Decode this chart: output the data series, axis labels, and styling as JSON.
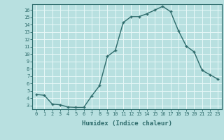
{
  "x": [
    0,
    1,
    2,
    3,
    4,
    5,
    6,
    7,
    8,
    9,
    10,
    11,
    12,
    13,
    14,
    15,
    16,
    17,
    18,
    19,
    20,
    21,
    22,
    23
  ],
  "y": [
    4.5,
    4.4,
    3.2,
    3.1,
    2.8,
    2.75,
    2.75,
    4.3,
    5.7,
    9.7,
    10.5,
    14.3,
    15.1,
    15.1,
    15.5,
    16.0,
    16.5,
    15.8,
    13.2,
    11.1,
    10.3,
    7.8,
    7.2,
    6.6
  ],
  "xlabel": "Humidex (Indice chaleur)",
  "xlim": [
    -0.5,
    23.5
  ],
  "ylim": [
    2.5,
    16.8
  ],
  "yticks": [
    3,
    4,
    5,
    6,
    7,
    8,
    9,
    10,
    11,
    12,
    13,
    14,
    15,
    16
  ],
  "xticks": [
    0,
    1,
    2,
    3,
    4,
    5,
    6,
    7,
    8,
    9,
    10,
    11,
    12,
    13,
    14,
    15,
    16,
    17,
    18,
    19,
    20,
    21,
    22,
    23
  ],
  "line_color": "#2d6b6b",
  "bg_color": "#b8e0e0",
  "grid_color": "#e8f8f8",
  "tick_color": "#2d6b6b",
  "label_color": "#2d6b6b",
  "spine_color": "#2d6b6b"
}
